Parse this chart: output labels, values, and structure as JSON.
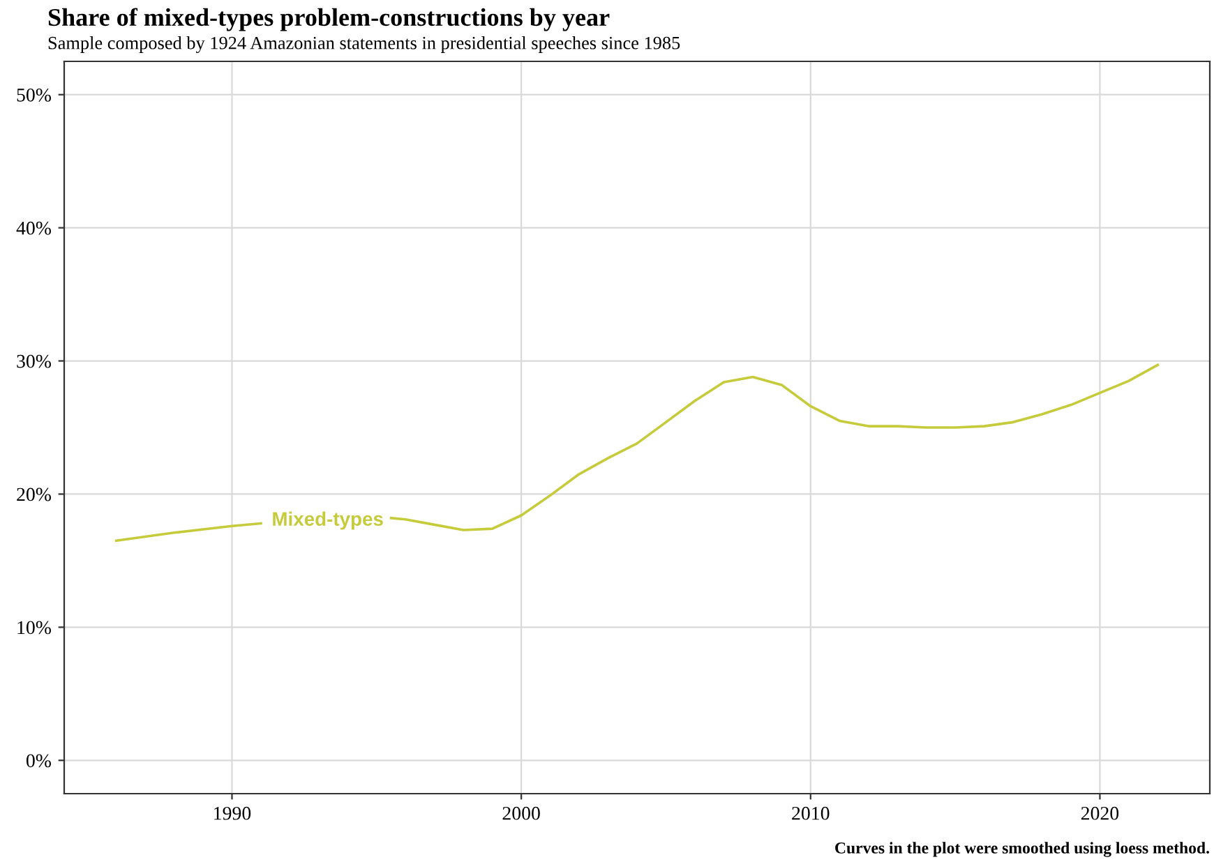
{
  "chart_data": {
    "type": "line",
    "title": "Share of mixed-types problem-constructions by year",
    "subtitle": "Sample composed by 1924 Amazonian statements in presidential speeches since 1985",
    "x": [
      1986,
      1988,
      1990,
      1991,
      1993,
      1995.5,
      1996,
      1997,
      1998,
      1999,
      2000,
      2001,
      2002,
      2003,
      2004,
      2005,
      2006,
      2007,
      2008,
      2009,
      2010,
      2011,
      2012,
      2013,
      2014,
      2015,
      2016,
      2017,
      2018,
      2019,
      2020,
      2021,
      2022
    ],
    "series": [
      {
        "name": "Mixed-types",
        "color": "#c5cb3a",
        "values": [
          16.5,
          17.1,
          17.6,
          17.8,
          null,
          18.2,
          18.1,
          17.7,
          17.3,
          17.4,
          18.4,
          19.9,
          21.5,
          22.7,
          23.8,
          25.4,
          27.0,
          28.4,
          28.8,
          28.2,
          26.6,
          25.5,
          25.1,
          25.1,
          25.0,
          25.0,
          25.1,
          25.4,
          26.0,
          26.7,
          27.6,
          28.5,
          29.7
        ]
      }
    ],
    "xlim": [
      1984.2,
      2023.8
    ],
    "xticks": [
      1990,
      2000,
      2010,
      2020
    ],
    "ylim": [
      -2.5,
      52.5
    ],
    "yticks": [
      {
        "value": 0,
        "label": "0%"
      },
      {
        "value": 10,
        "label": "10%"
      },
      {
        "value": 20,
        "label": "20%"
      },
      {
        "value": 30,
        "label": "30%"
      },
      {
        "value": 40,
        "label": "40%"
      },
      {
        "value": 50,
        "label": "50%"
      }
    ],
    "grid": true,
    "legend": false,
    "line_style": "solid",
    "marker": "none",
    "annotations": [
      "Curves in the plot were smoothed using loess method."
    ]
  }
}
